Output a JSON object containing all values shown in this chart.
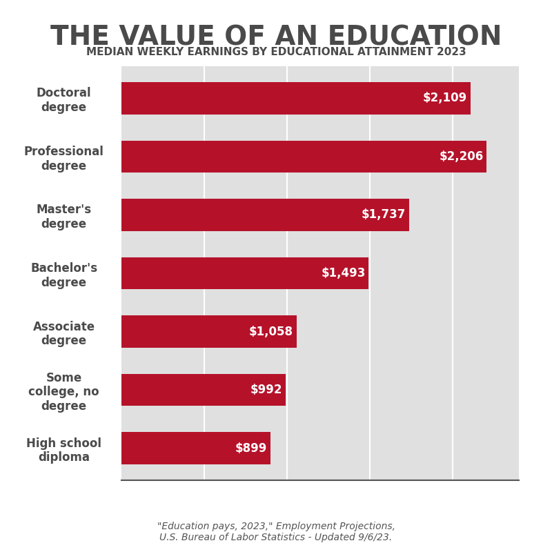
{
  "title": "THE VALUE OF AN EDUCATION",
  "subtitle": "MEDIAN WEEKLY EARNINGS BY EDUCATIONAL ATTAINMENT 2023",
  "categories": [
    "High school\ndiploma",
    "Some\ncollege, no\ndegree",
    "Associate\ndegree",
    "Bachelor's\ndegree",
    "Master's\ndegree",
    "Professional\ndegree",
    "Doctoral\ndegree"
  ],
  "values": [
    899,
    992,
    1058,
    1493,
    1737,
    2206,
    2109
  ],
  "bar_color": "#b5122a",
  "bg_color": "#ffffff",
  "chart_bg_color": "#e0e0e0",
  "title_color": "#4a4a4a",
  "subtitle_color": "#4a4a4a",
  "label_color": "#4a4a4a",
  "value_color": "#ffffff",
  "footnote": "\"Education pays, 2023,\" Employment Projections,\nU.S. Bureau of Labor Statistics - Updated 9/6/23.",
  "footnote_color": "#555555",
  "xlim": [
    0,
    2400
  ],
  "grid_values": [
    500,
    1000,
    1500,
    2000
  ],
  "title_fontsize": 28,
  "subtitle_fontsize": 11,
  "label_fontsize": 12,
  "value_fontsize": 12,
  "footnote_fontsize": 10
}
